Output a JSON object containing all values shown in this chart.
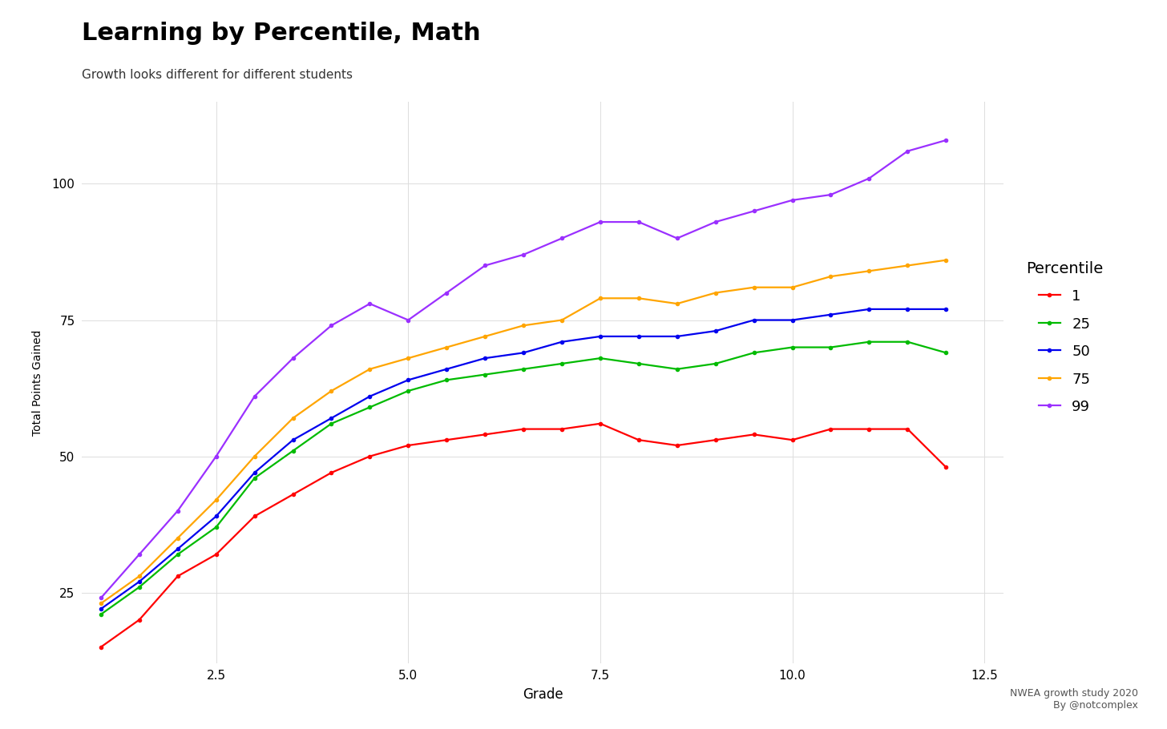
{
  "title": "Learning by Percentile, Math",
  "subtitle": "Growth looks different for different students",
  "xlabel": "Grade",
  "ylabel": "Total Points Gained",
  "source_text": "NWEA growth study 2020\nBy @notcomplex",
  "legend_title": "Percentile",
  "grades": [
    1,
    1.5,
    2,
    2.5,
    3,
    3.5,
    4,
    4.5,
    5,
    5.5,
    6,
    6.5,
    7,
    7.5,
    8,
    8.5,
    9,
    9.5,
    10,
    10.5,
    11,
    11.5,
    12
  ],
  "series": {
    "1": {
      "color": "#FF0000",
      "values": [
        15,
        20,
        28,
        32,
        39,
        43,
        47,
        50,
        52,
        53,
        54,
        55,
        55,
        56,
        53,
        52,
        53,
        54,
        53,
        55,
        55,
        55,
        48
      ]
    },
    "25": {
      "color": "#00BB00",
      "values": [
        21,
        26,
        32,
        37,
        46,
        51,
        56,
        59,
        62,
        64,
        65,
        66,
        67,
        68,
        67,
        66,
        67,
        69,
        70,
        70,
        71,
        71,
        69
      ]
    },
    "50": {
      "color": "#0000EE",
      "values": [
        22,
        27,
        33,
        39,
        47,
        53,
        57,
        61,
        64,
        66,
        68,
        69,
        71,
        72,
        72,
        72,
        73,
        75,
        75,
        76,
        77,
        77,
        77
      ]
    },
    "75": {
      "color": "#FFA500",
      "values": [
        23,
        28,
        35,
        42,
        50,
        57,
        62,
        66,
        68,
        70,
        72,
        74,
        75,
        79,
        79,
        78,
        80,
        81,
        81,
        83,
        84,
        85,
        86
      ]
    },
    "99": {
      "color": "#9B30FF",
      "values": [
        24,
        32,
        40,
        50,
        61,
        68,
        74,
        78,
        75,
        80,
        85,
        87,
        90,
        93,
        93,
        90,
        93,
        95,
        97,
        98,
        101,
        106,
        108
      ]
    }
  },
  "xlim": [
    0.75,
    12.75
  ],
  "ylim": [
    12,
    115
  ],
  "xticks": [
    2.5,
    5.0,
    7.5,
    10.0,
    12.5
  ],
  "yticks": [
    25,
    50,
    75,
    100
  ],
  "background_color": "#FFFFFF",
  "grid_color": "#DDDDDD"
}
